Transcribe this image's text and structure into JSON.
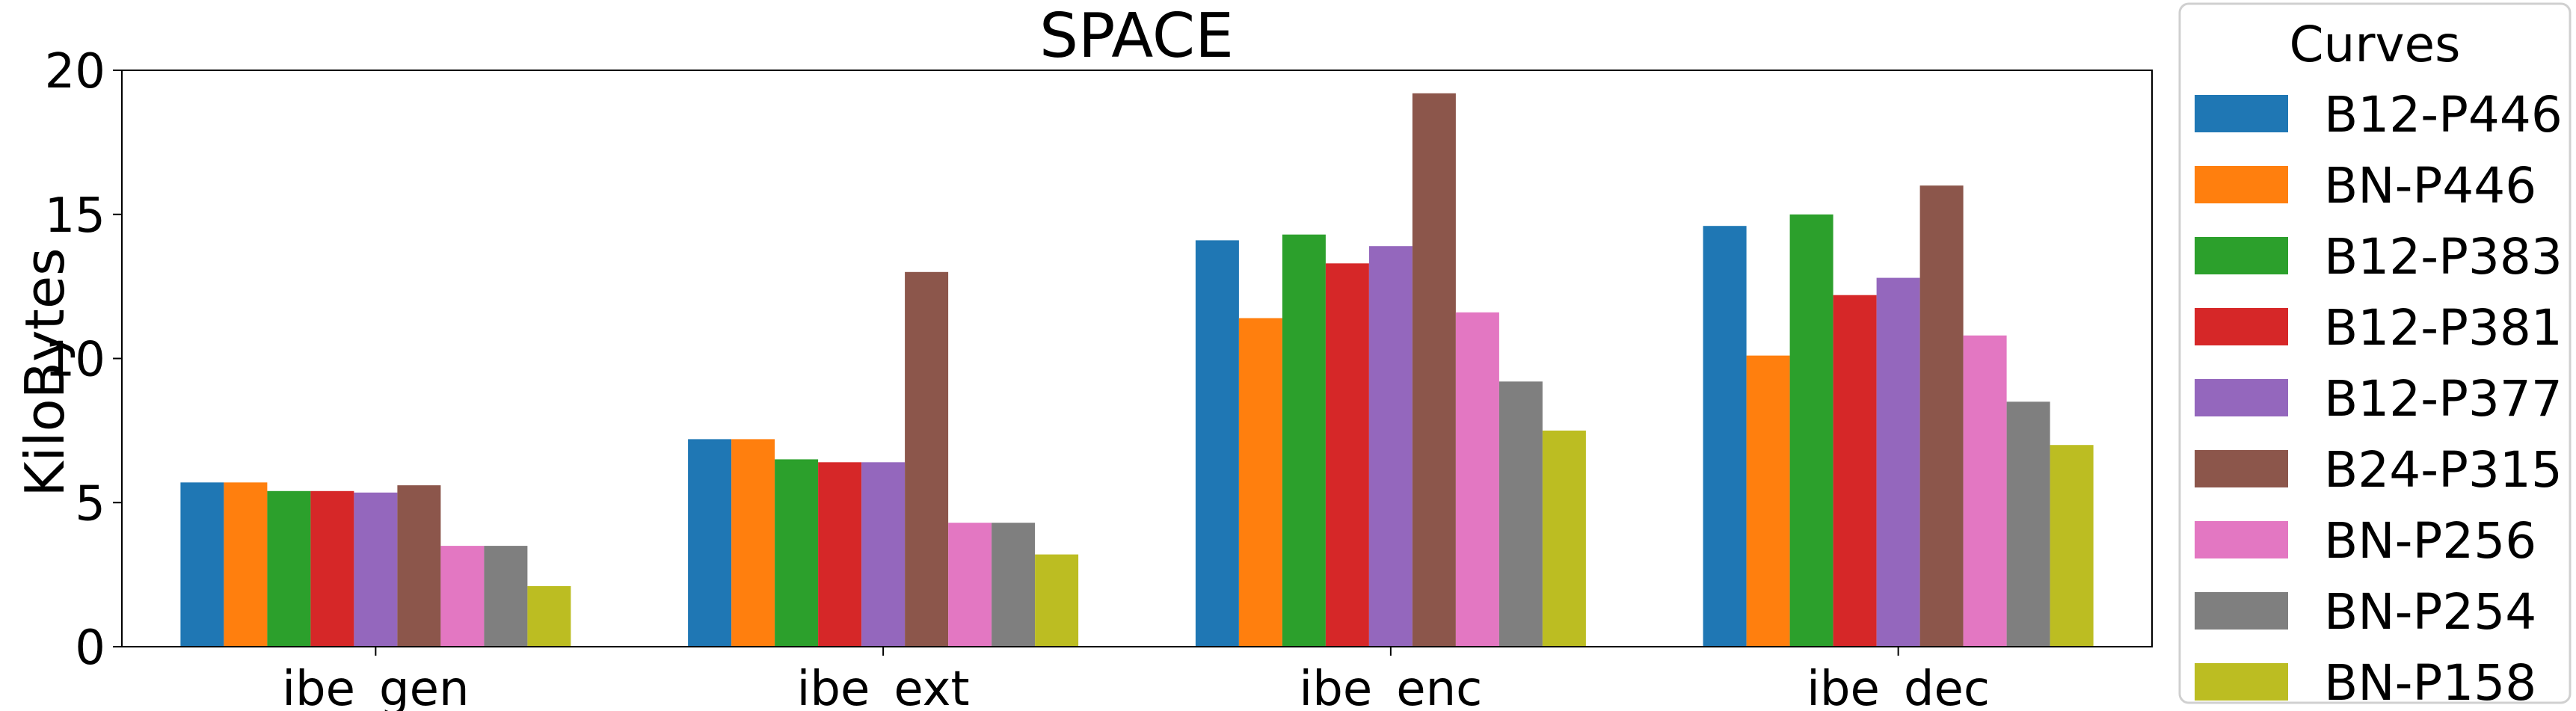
{
  "chart_data": {
    "type": "bar",
    "title": "SPACE",
    "xlabel": "",
    "ylabel": "KiloBytes",
    "ylim": [
      0,
      20
    ],
    "yticks": [
      0,
      5,
      10,
      15,
      20
    ],
    "grid": false,
    "legend": {
      "title": "Curves",
      "placement": "right-outside"
    },
    "categories": [
      "ibe_gen",
      "ibe_ext",
      "ibe_enc",
      "ibe_dec"
    ],
    "series": [
      {
        "name": "B12-P446",
        "color": "#1f77b4",
        "values": [
          5.7,
          7.2,
          14.1,
          14.6
        ]
      },
      {
        "name": "BN-P446",
        "color": "#ff7f0e",
        "values": [
          5.7,
          7.2,
          11.4,
          10.1
        ]
      },
      {
        "name": "B12-P383",
        "color": "#2ca02c",
        "values": [
          5.4,
          6.5,
          14.3,
          15.0
        ]
      },
      {
        "name": "B12-P381",
        "color": "#d62728",
        "values": [
          5.4,
          6.4,
          13.3,
          12.2
        ]
      },
      {
        "name": "B12-P377",
        "color": "#9467bd",
        "values": [
          5.35,
          6.4,
          13.9,
          12.8
        ]
      },
      {
        "name": "B24-P315",
        "color": "#8c564b",
        "values": [
          5.6,
          13.0,
          19.2,
          16.0
        ]
      },
      {
        "name": "BN-P256",
        "color": "#e377c2",
        "values": [
          3.5,
          4.3,
          11.6,
          10.8
        ]
      },
      {
        "name": "BN-P254",
        "color": "#7f7f7f",
        "values": [
          3.5,
          4.3,
          9.2,
          8.5
        ]
      },
      {
        "name": "BN-P158",
        "color": "#bcbd22",
        "values": [
          2.1,
          3.2,
          7.5,
          7.0
        ]
      }
    ]
  }
}
